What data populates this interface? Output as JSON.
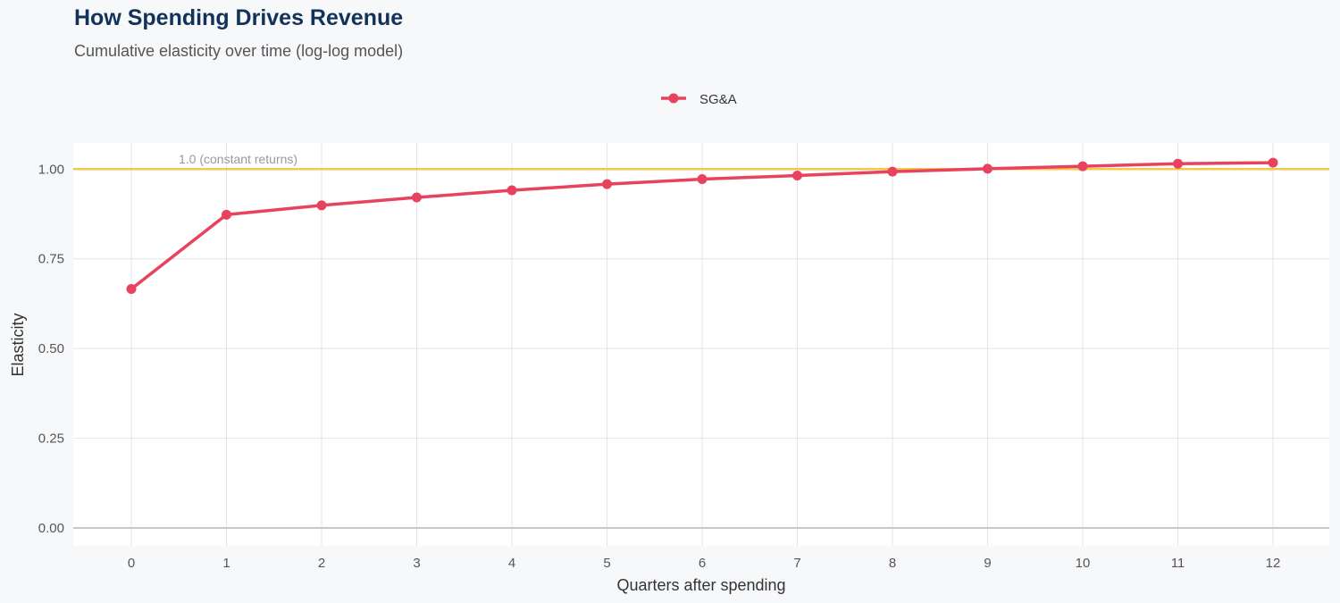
{
  "header": {
    "title": "How Spending Drives Revenue",
    "subtitle": "Cumulative elasticity over time (log-log model)"
  },
  "chart_data": {
    "type": "line",
    "title": "How Spending Drives Revenue",
    "subtitle": "Cumulative elasticity over time (log-log model)",
    "xlabel": "Quarters after spending",
    "ylabel": "Elasticity",
    "x": [
      0,
      1,
      2,
      3,
      4,
      5,
      6,
      7,
      8,
      9,
      10,
      11,
      12
    ],
    "series": [
      {
        "name": "SG&A",
        "color": "#e8435e",
        "values": [
          0.666,
          0.873,
          0.899,
          0.921,
          0.941,
          0.958,
          0.972,
          0.982,
          0.993,
          1.001,
          1.008,
          1.015,
          1.018
        ]
      }
    ],
    "xlim": [
      -0.6,
      12.6
    ],
    "ylim": [
      -0.05,
      1.07
    ],
    "xticks": [
      "0",
      "1",
      "2",
      "3",
      "4",
      "5",
      "6",
      "7",
      "8",
      "9",
      "10",
      "11",
      "12"
    ],
    "yticks": [
      0,
      0.25,
      0.5,
      0.75,
      1.0
    ],
    "ytick_labels": [
      "0.00",
      "0.25",
      "0.50",
      "0.75",
      "1.00"
    ],
    "reference_line": {
      "y": 1.0,
      "label": "1.0 (constant returns)",
      "color": "#f5c84c"
    },
    "legend": "top",
    "grid": true
  }
}
